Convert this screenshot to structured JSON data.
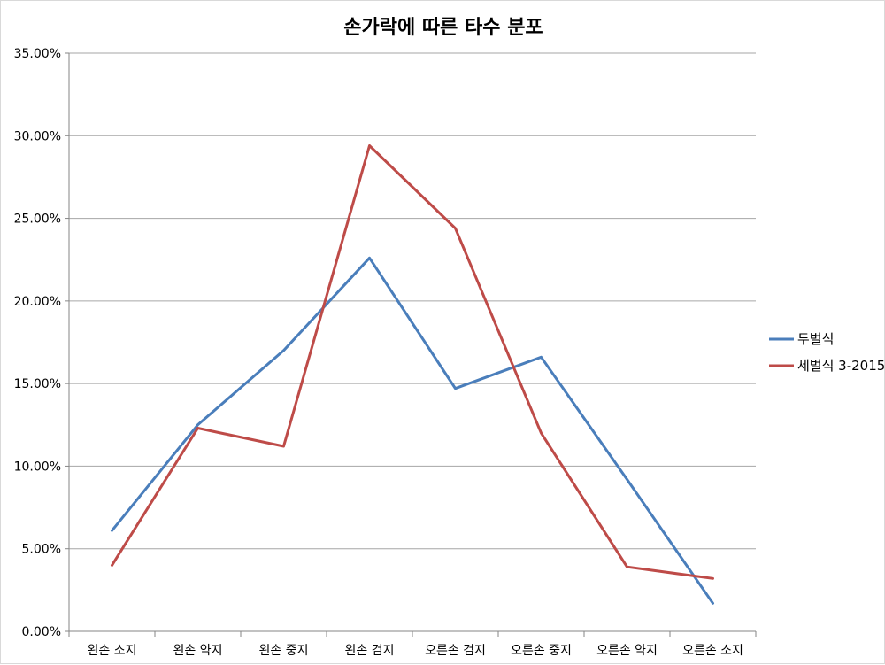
{
  "chart_data": {
    "type": "line",
    "title": "손가락에 따른 타수 분포",
    "xlabel": "",
    "ylabel": "",
    "categories": [
      "왼손 소지",
      "왼손 약지",
      "왼손 중지",
      "왼손 검지",
      "오른손 검지",
      "오른손 중지",
      "오른손 약지",
      "오른손 소지"
    ],
    "ylim": [
      0,
      0.35
    ],
    "yticks": [
      0,
      0.05,
      0.1,
      0.15,
      0.2,
      0.25,
      0.3,
      0.35
    ],
    "ytick_labels": [
      "0.00%",
      "5.00%",
      "10.00%",
      "15.00%",
      "20.00%",
      "25.00%",
      "30.00%",
      "35.00%"
    ],
    "grid": true,
    "legend_position": "right",
    "series": [
      {
        "name": "두벌식",
        "color": "#4a7ebb",
        "values": [
          0.061,
          0.125,
          0.17,
          0.226,
          0.147,
          0.166,
          0.092,
          0.017
        ]
      },
      {
        "name": "세벌식 3-2015",
        "color": "#be4b48",
        "values": [
          0.04,
          0.123,
          0.112,
          0.294,
          0.244,
          0.12,
          0.039,
          0.032
        ]
      }
    ]
  }
}
